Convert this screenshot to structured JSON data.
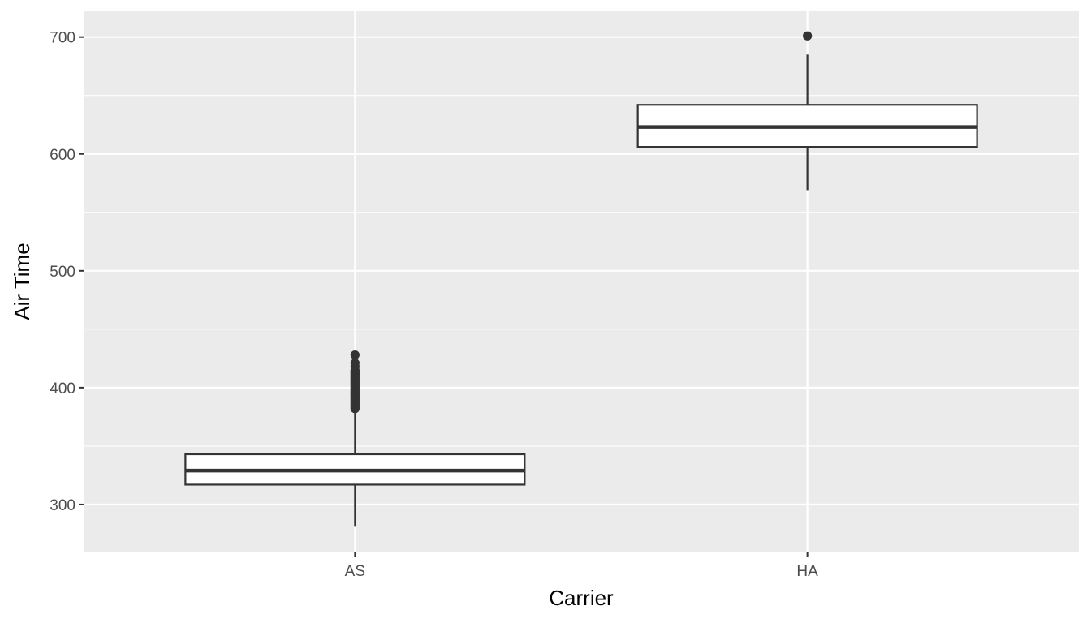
{
  "chart_data": {
    "type": "boxplot",
    "xlabel": "Carrier",
    "ylabel": "Air Time",
    "categories": [
      "AS",
      "HA"
    ],
    "ylim": [
      259,
      722
    ],
    "yticks": [
      300,
      400,
      500,
      600,
      700
    ],
    "ytick_labels": [
      "300",
      "400",
      "500",
      "600",
      "700"
    ],
    "grid": true,
    "boxes": [
      {
        "category": "AS",
        "whisker_low": 281,
        "q1": 317,
        "median": 329,
        "q3": 343,
        "whisker_high": 381,
        "outliers": [
          382,
          383,
          384,
          385,
          386,
          387,
          388,
          389,
          390,
          391,
          392,
          393,
          394,
          395,
          396,
          397,
          398,
          399,
          400,
          401,
          402,
          403,
          404,
          405,
          406,
          407,
          408,
          409,
          410,
          411,
          412,
          413,
          414,
          415,
          418,
          421,
          428
        ]
      },
      {
        "category": "HA",
        "whisker_low": 569,
        "q1": 606,
        "median": 623,
        "q3": 642,
        "whisker_high": 685,
        "outliers": [
          701
        ]
      }
    ],
    "colors": {
      "panel_background": "#ebebeb",
      "grid_line": "#ffffff",
      "box_fill": "#ffffff",
      "box_stroke": "#333333",
      "outlier": "#333333",
      "tick_label": "#4d4d4d",
      "tick_mark": "#333333",
      "axis_title": "#000000"
    }
  }
}
